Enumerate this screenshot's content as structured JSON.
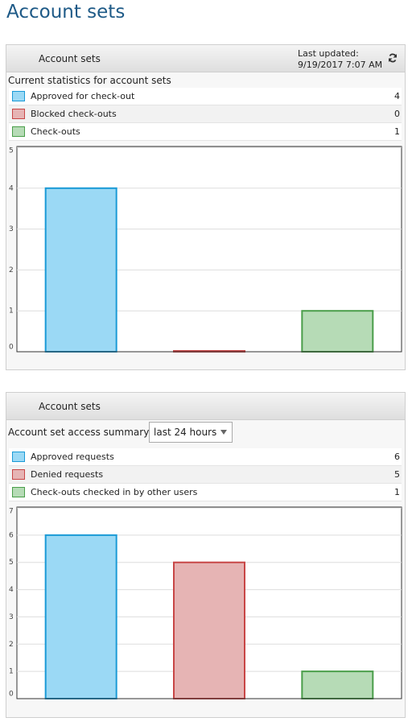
{
  "page_title": "Account sets",
  "panels": [
    {
      "header": "Account sets",
      "last_updated_label": "Last updated:",
      "last_updated": "9/19/2017 7:07 AM",
      "subtitle": "Current statistics for account sets"
    },
    {
      "header": "Account sets",
      "filter_label": "Account set access summary:",
      "filter_value": "last 24 hours"
    }
  ],
  "chart_data": [
    {
      "type": "bar",
      "categories": [
        "Approved for check-out",
        "Blocked check-outs",
        "Check-outs"
      ],
      "values": [
        4,
        0,
        1
      ],
      "colors": [
        "#9bd9f5",
        "#e6b4b4",
        "#b6dbb6"
      ],
      "border_colors": [
        "#1a9ad6",
        "#c84646",
        "#4a9e4a"
      ],
      "ylim": [
        0,
        5
      ],
      "yticks": [
        0,
        1,
        2,
        3,
        4,
        5
      ],
      "grid": true
    },
    {
      "type": "bar",
      "categories": [
        "Approved requests",
        "Denied requests",
        "Check-outs checked in by other users"
      ],
      "values": [
        6,
        5,
        1
      ],
      "colors": [
        "#9bd9f5",
        "#e6b4b4",
        "#b6dbb6"
      ],
      "border_colors": [
        "#1a9ad6",
        "#c84646",
        "#4a9e4a"
      ],
      "ylim": [
        0,
        7
      ],
      "yticks": [
        0,
        1,
        2,
        3,
        4,
        5,
        6,
        7
      ],
      "grid": true
    }
  ]
}
